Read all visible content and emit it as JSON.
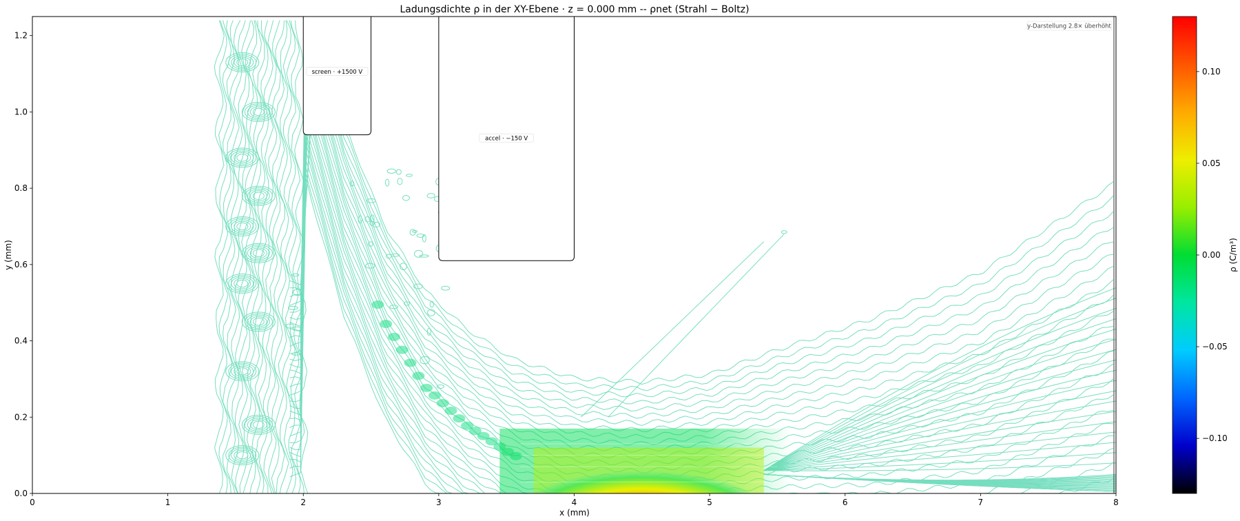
{
  "chart_data": {
    "type": "contour",
    "title": "Ladungsdichte ρ in der XY-Ebene  ·  z = 0.000 mm  -- ρnet (Strahl − Boltz)",
    "xlabel": "x (mm)",
    "ylabel": "y (mm)",
    "xlim": [
      0,
      8
    ],
    "ylim": [
      0,
      1.25
    ],
    "xticks": [
      "0",
      "1",
      "2",
      "3",
      "4",
      "5",
      "6",
      "7",
      "8"
    ],
    "yticks": [
      "0.0",
      "0.2",
      "0.4",
      "0.6",
      "0.8",
      "1.0",
      "1.2"
    ],
    "note": "y-Darstellung 2.8× überhöht",
    "colorbar": {
      "label": "ρ (C/m³)",
      "range": [
        -0.13,
        0.13
      ],
      "ticks": [
        "−0.10",
        "−0.05",
        "0.00",
        "0.05",
        "0.10"
      ],
      "tick_values": [
        -0.1,
        -0.05,
        0.0,
        0.05,
        0.1
      ],
      "colormap": [
        "#000000",
        "#0000cc",
        "#0066ff",
        "#00ccff",
        "#00e6a0",
        "#00dd33",
        "#99ee00",
        "#eeee00",
        "#ffaa00",
        "#ff5500",
        "#ff0000"
      ]
    },
    "electrodes": [
      {
        "label": "screen · +1500 V",
        "x_range": [
          2.0,
          2.5
        ],
        "y_bottom": 0.94
      },
      {
        "label": "accel · −150 V",
        "x_range": [
          3.0,
          4.0
        ],
        "y_bottom": 0.61
      }
    ],
    "beam": {
      "centerline": [
        [
          2.0,
          1.1
        ],
        [
          2.3,
          0.72
        ],
        [
          2.6,
          0.45
        ],
        [
          2.9,
          0.28
        ],
        [
          3.2,
          0.18
        ],
        [
          3.55,
          0.1
        ],
        [
          4.0,
          0.05
        ],
        [
          4.5,
          0.04
        ],
        [
          5.0,
          0.06
        ],
        [
          5.5,
          0.08
        ],
        [
          6.2,
          0.1
        ],
        [
          7.0,
          0.15
        ],
        [
          8.0,
          0.3
        ]
      ],
      "peak_rho": 0.12,
      "peak_x": 4.5
    },
    "contour_color": "#5fd9b5"
  }
}
